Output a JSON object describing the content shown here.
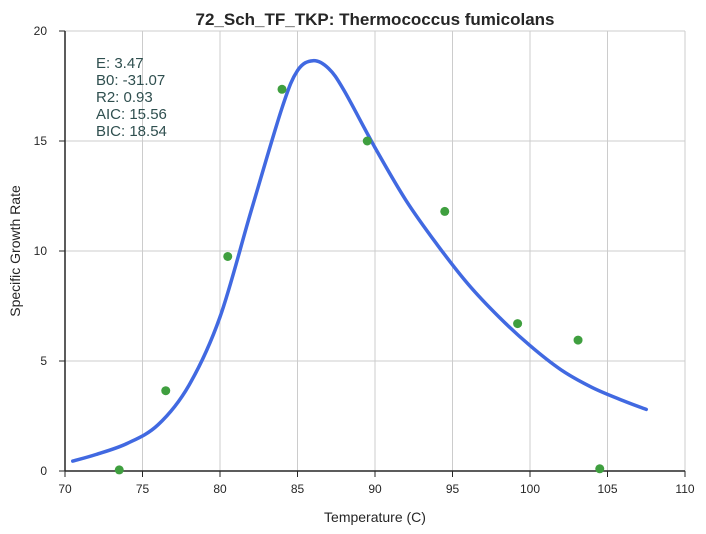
{
  "chart_data": {
    "type": "scatter",
    "title": "72_Sch_TF_TKP: Thermococcus fumicolans",
    "xlabel": "Temperature (C)",
    "ylabel": "Specific Growth Rate",
    "xlim": [
      70,
      110
    ],
    "ylim": [
      0,
      20
    ],
    "xticks": [
      70,
      75,
      80,
      85,
      90,
      95,
      100,
      105,
      110
    ],
    "yticks": [
      0,
      5,
      10,
      15,
      20
    ],
    "xtick_labels": [
      "70",
      "75",
      "80",
      "85",
      "90",
      "95",
      "100",
      "105",
      "110"
    ],
    "ytick_labels": [
      "0",
      "5",
      "10",
      "15",
      "20"
    ],
    "grid": true,
    "points": {
      "color": "#3f9f3f",
      "x": [
        73.5,
        76.5,
        80.5,
        84.0,
        89.5,
        94.5,
        99.2,
        103.1,
        104.5
      ],
      "y": [
        0.05,
        3.65,
        9.75,
        17.35,
        15.0,
        11.8,
        6.7,
        5.95,
        0.1
      ]
    },
    "fit": {
      "color": "#4169e1",
      "x": [
        70.5,
        72,
        74,
        76,
        78,
        80,
        82,
        84,
        85,
        86,
        87,
        88,
        90,
        92,
        94,
        96,
        98,
        100,
        102,
        104,
        106,
        107.5
      ],
      "y": [
        0.45,
        0.75,
        1.25,
        2.1,
        3.9,
        7.0,
        11.8,
        16.5,
        18.2,
        18.65,
        18.3,
        17.3,
        14.7,
        12.3,
        10.3,
        8.5,
        7.0,
        5.7,
        4.6,
        3.8,
        3.2,
        2.8
      ]
    },
    "annotations": [
      "E:  3.47",
      "B0:  -31.07",
      "R2:  0.93",
      "AIC: 15.56",
      "BIC: 18.54"
    ]
  }
}
